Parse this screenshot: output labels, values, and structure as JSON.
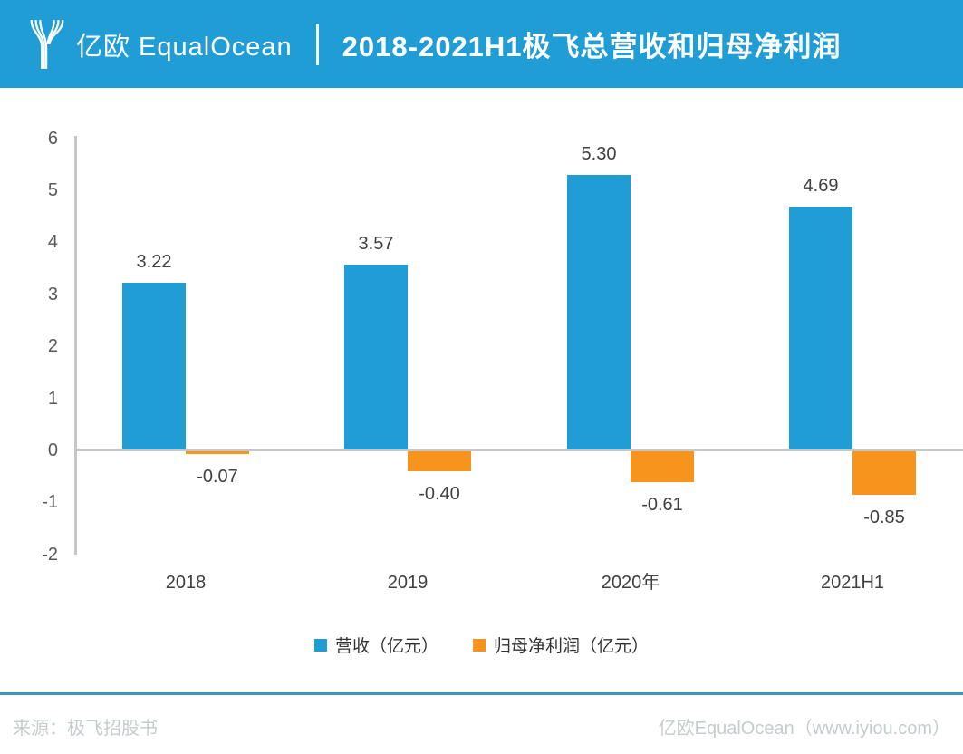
{
  "header": {
    "logo_text": "亿欧 EqualOcean",
    "title": "2018-2021H1极飞总营收和归母净利润"
  },
  "chart_data": {
    "type": "bar",
    "title": "2018-2021H1极飞总营收和归母净利润",
    "categories": [
      "2018",
      "2019",
      "2020年",
      "2021H1"
    ],
    "series": [
      {
        "name": "营收（亿元）",
        "color": "#209dd4",
        "values": [
          3.22,
          3.57,
          5.3,
          4.69
        ]
      },
      {
        "name": "归母净利润（亿元）",
        "color": "#f7941e",
        "values": [
          -0.07,
          -0.4,
          -0.61,
          -0.85
        ]
      }
    ],
    "value_labels": [
      [
        "3.22",
        "3.57",
        "5.30",
        "4.69"
      ],
      [
        "-0.07",
        "-0.40",
        "-0.61",
        "-0.85"
      ]
    ],
    "xlabel": "",
    "ylabel": "",
    "ylim": [
      -2,
      6
    ],
    "yticks": [
      6,
      5,
      4,
      3,
      2,
      1,
      0,
      -1,
      -2
    ],
    "grid": false,
    "legend_position": "bottom"
  },
  "footer": {
    "source": "来源：极飞招股书",
    "credit": "亿欧EqualOcean（www.iyiou.com）"
  },
  "colors": {
    "brand_blue": "#209dd4",
    "orange": "#f7941e",
    "axis_grey": "#c6c6c6",
    "footer_line": "#3799bc",
    "footer_text": "#c6cccd"
  }
}
